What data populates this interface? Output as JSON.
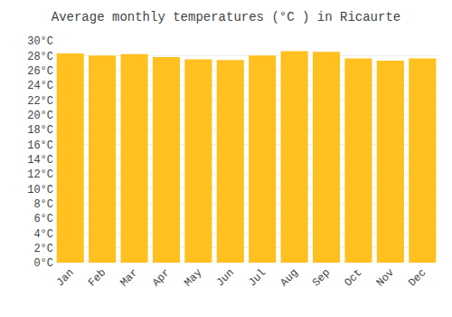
{
  "chart_data": {
    "type": "bar",
    "title": "Average monthly temperatures (°C ) in Ricaurte",
    "categories": [
      "Jan",
      "Feb",
      "Mar",
      "Apr",
      "May",
      "Jun",
      "Jul",
      "Aug",
      "Sep",
      "Oct",
      "Nov",
      "Dec"
    ],
    "values": [
      28.3,
      28.0,
      28.2,
      27.8,
      27.5,
      27.4,
      28.0,
      28.6,
      28.5,
      27.6,
      27.3,
      27.6
    ],
    "color": "#FFC020",
    "ylim": [
      0,
      30
    ],
    "yticks": [
      {
        "value": 0,
        "label": "0°C"
      },
      {
        "value": 2,
        "label": "2°C"
      },
      {
        "value": 4,
        "label": "4°C"
      },
      {
        "value": 6,
        "label": "6°C"
      },
      {
        "value": 8,
        "label": "8°C"
      },
      {
        "value": 10,
        "label": "10°C"
      },
      {
        "value": 12,
        "label": "12°C"
      },
      {
        "value": 14,
        "label": "14°C"
      },
      {
        "value": 16,
        "label": "16°C"
      },
      {
        "value": 18,
        "label": "18°C"
      },
      {
        "value": 20,
        "label": "20°C"
      },
      {
        "value": 22,
        "label": "22°C"
      },
      {
        "value": 24,
        "label": "24°C"
      },
      {
        "value": 26,
        "label": "26°C"
      },
      {
        "value": 28,
        "label": "28°C"
      },
      {
        "value": 30,
        "label": "30°C"
      }
    ],
    "grid": true
  }
}
